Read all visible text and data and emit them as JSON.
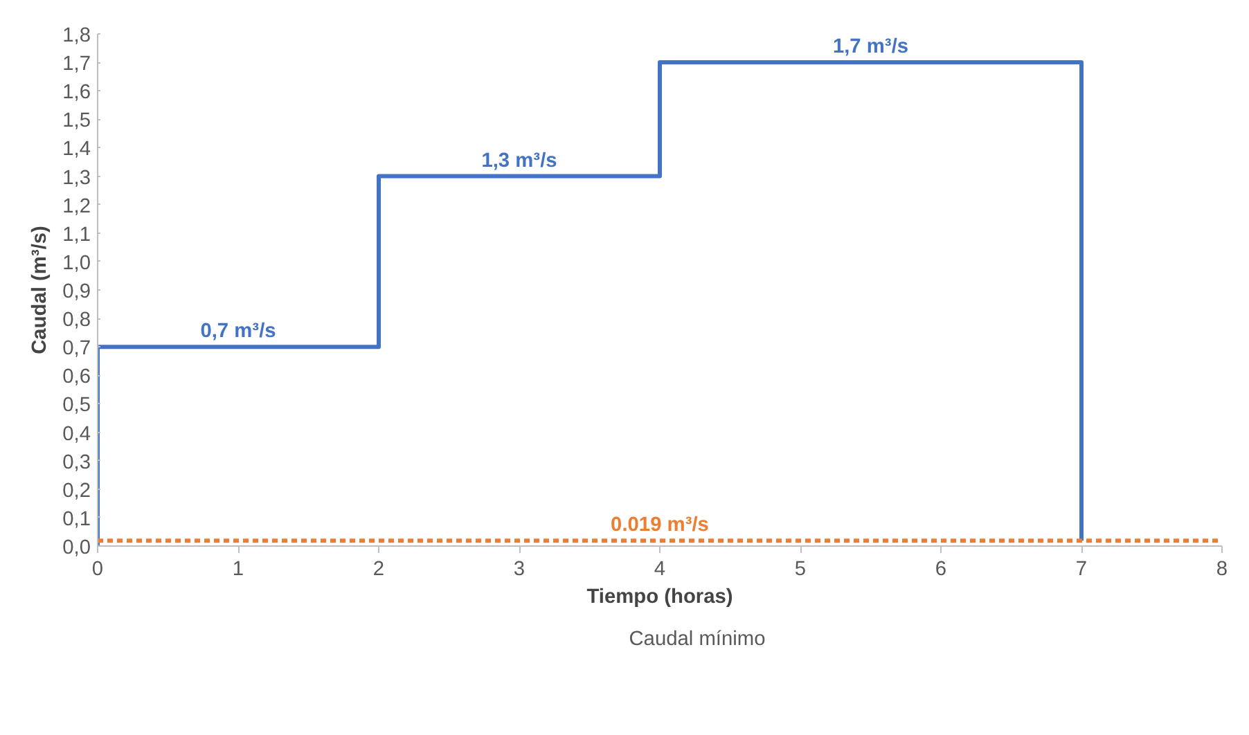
{
  "chart_data": {
    "type": "line",
    "xlabel": "Tiempo (horas)",
    "ylabel": "Caudal (m³/s)",
    "series": [
      {
        "color": "#4472c4",
        "x": [
          0,
          0,
          2,
          2,
          4,
          4,
          7,
          7
        ],
        "values": [
          0,
          0.7,
          0.7,
          1.3,
          1.3,
          1.7,
          1.7,
          0.019
        ],
        "line_style": "solid"
      },
      {
        "name": "Caudal mínimo",
        "color": "#ed7d31",
        "x": [
          0,
          8
        ],
        "values": [
          0.019,
          0.019
        ],
        "line_style": "dashed"
      }
    ],
    "xlim": [
      0,
      8
    ],
    "xticks": [
      0,
      1,
      2,
      3,
      4,
      5,
      6,
      7,
      8
    ],
    "ylim": [
      0,
      1.8
    ],
    "yticks": [
      {
        "value": 0,
        "label": "0,0"
      },
      {
        "value": 0.1,
        "label": "0,1"
      },
      {
        "value": 0.2,
        "label": "0,2"
      },
      {
        "value": 0.3,
        "label": "0,3"
      },
      {
        "value": 0.4,
        "label": "0,4"
      },
      {
        "value": 0.5,
        "label": "0,5"
      },
      {
        "value": 0.6,
        "label": "0,6"
      },
      {
        "value": 0.7,
        "label": "0,7"
      },
      {
        "value": 0.8,
        "label": "0,8"
      },
      {
        "value": 0.9,
        "label": "0,9"
      },
      {
        "value": 1.0,
        "label": "1,0"
      },
      {
        "value": 1.1,
        "label": "1,1"
      },
      {
        "value": 1.2,
        "label": "1,2"
      },
      {
        "value": 1.3,
        "label": "1,3"
      },
      {
        "value": 1.4,
        "label": "1,4"
      },
      {
        "value": 1.5,
        "label": "1,5"
      },
      {
        "value": 1.6,
        "label": "1,6"
      },
      {
        "value": 1.7,
        "label": "1,7"
      },
      {
        "value": 1.8,
        "label": "1,8"
      }
    ],
    "annotations": [
      {
        "text": "0,7 m³/s",
        "x": 1,
        "y": 0.7
      },
      {
        "text": "1,3 m³/s",
        "x": 3,
        "y": 1.3
      },
      {
        "text": "1,7 m³/s",
        "x": 5.5,
        "y": 1.7
      },
      {
        "text": "0.019 m³/s",
        "x": 4,
        "y": 0.019
      }
    ],
    "grid": false,
    "legend": "bottom"
  }
}
